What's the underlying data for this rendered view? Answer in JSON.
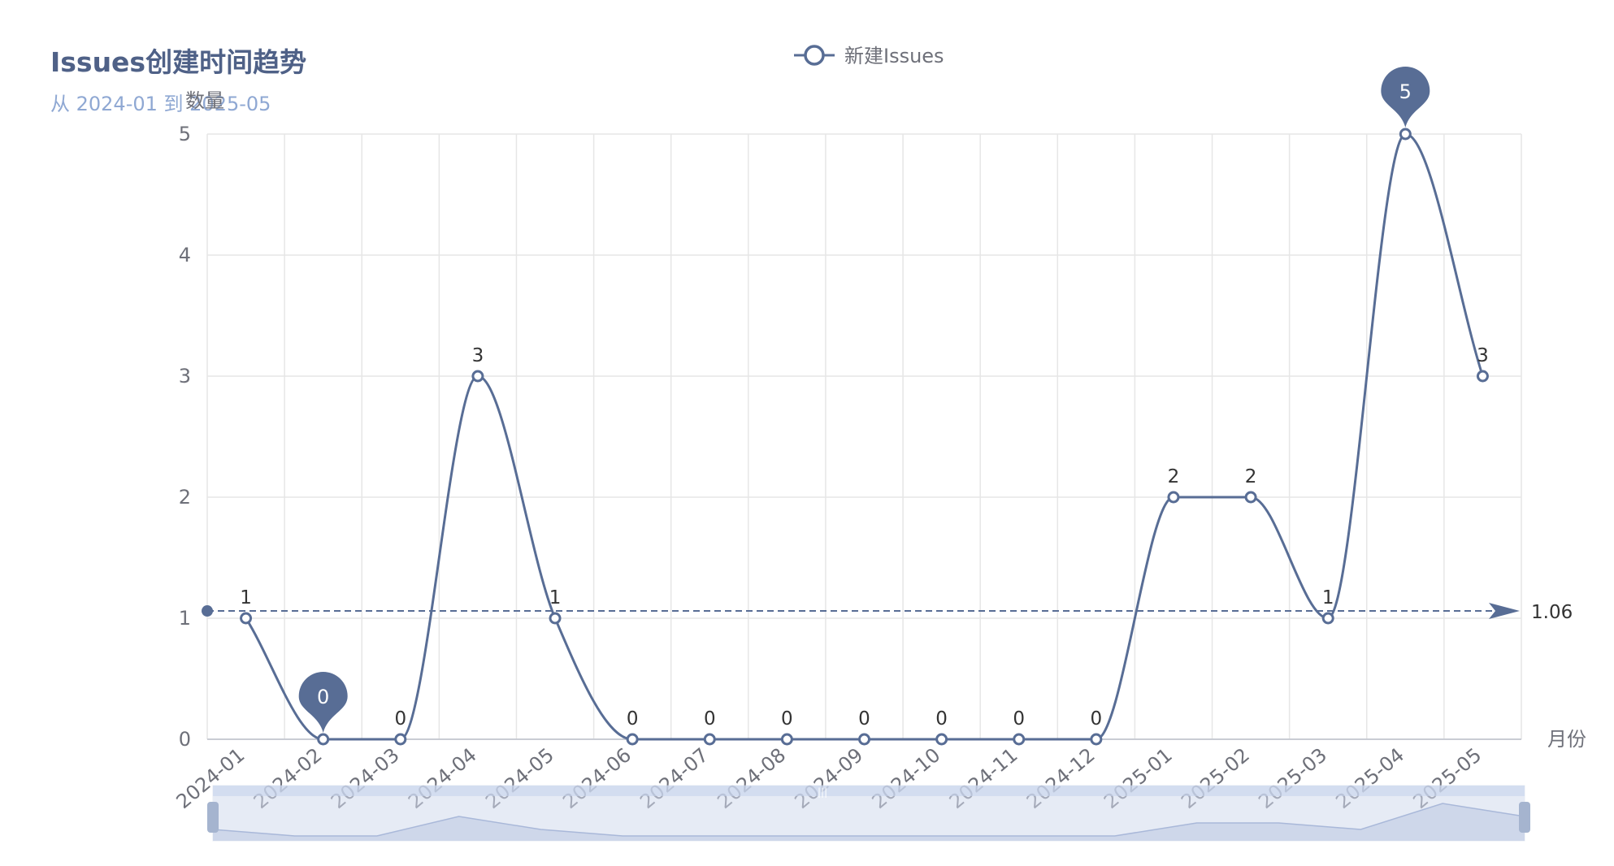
{
  "chart_data": {
    "type": "line",
    "title": "Issues创建时间趋势",
    "subtitle": "从 2024-01 到 2025-05",
    "ylabel": "数量",
    "xlabel": "月份",
    "categories": [
      "2024-01",
      "2024-02",
      "2024-03",
      "2024-04",
      "2024-05",
      "2024-06",
      "2024-07",
      "2024-08",
      "2024-09",
      "2024-10",
      "2024-11",
      "2024-12",
      "2025-01",
      "2025-02",
      "2025-03",
      "2025-04",
      "2025-05"
    ],
    "series": [
      {
        "name": "新建Issues",
        "values": [
          1,
          0,
          0,
          3,
          1,
          0,
          0,
          0,
          0,
          0,
          0,
          0,
          2,
          2,
          1,
          5,
          3
        ],
        "color": "#5470c6"
      }
    ],
    "ylim": [
      0,
      5
    ],
    "yticks": [
      0,
      1,
      2,
      3,
      4,
      5
    ],
    "smooth": true,
    "grid": true,
    "legend": "top-center",
    "mark_points": [
      {
        "label": "5",
        "index": 15,
        "value": 5
      },
      {
        "label": "0",
        "index": 1,
        "value": 0
      }
    ],
    "mark_line": {
      "type": "average",
      "value": 1.06,
      "label": "1.06"
    },
    "colors": {
      "line": "#586d95",
      "marker": "#586d95",
      "grid": "#e6e6e6",
      "slider": "#d2dbee"
    }
  }
}
